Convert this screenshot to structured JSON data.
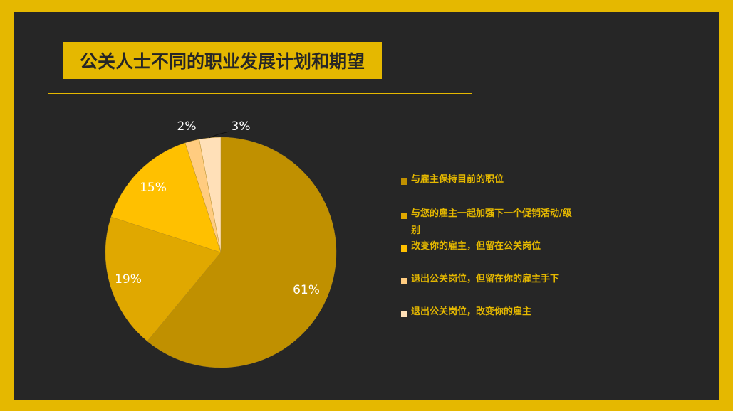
{
  "title": "公关人士不同的职业发展计划和期望",
  "chart_data": {
    "type": "pie",
    "title": "公关人士不同的职业发展计划和期望",
    "categories": [
      "与雇主保持目前的职位",
      "与您的雇主一起加强下一个促销活动/级别",
      "改变你的雇主，但留在公关岗位",
      "退出公关岗位，但留在你的雇主手下",
      "退出公关岗位，改变你的雇主"
    ],
    "values": [
      61,
      19,
      15,
      2,
      3
    ],
    "labels": [
      "61%",
      "19%",
      "15%",
      "2%",
      "3%"
    ],
    "colors": [
      "#C09000",
      "#E0A800",
      "#FFC000",
      "#FFCC80",
      "#FFE0B8"
    ],
    "legend_position": "right"
  }
}
